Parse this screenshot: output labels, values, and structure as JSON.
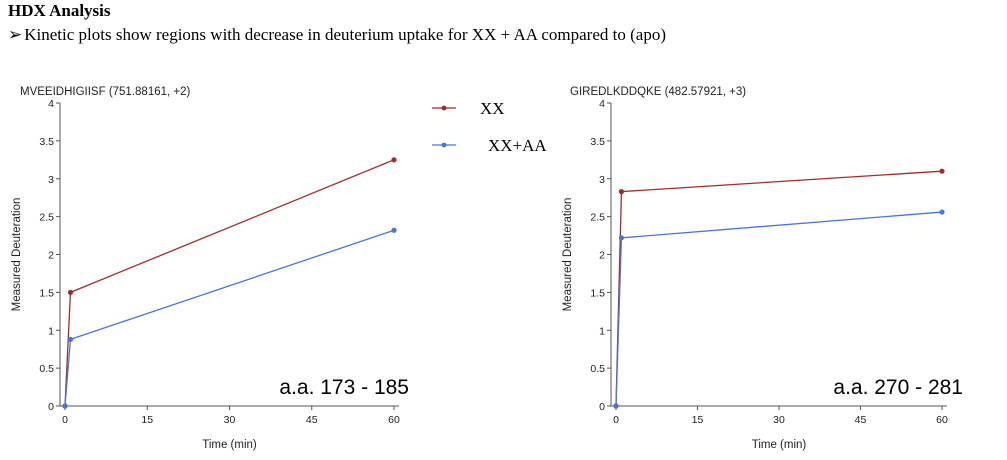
{
  "slide": {
    "heading": "HDX Analysis",
    "bullet_arrow": "➢",
    "bullet_text": "Kinetic plots show regions with decrease in deuterium uptake for XX + AA  compared to (apo)"
  },
  "legend": {
    "items": [
      {
        "label": "XX",
        "color": "#a52a2a"
      },
      {
        "label": "XX+AA",
        "color": "#4a74d9"
      }
    ]
  },
  "chart_data": [
    {
      "type": "line",
      "title": "MVEEIDHIGIISF (751.88161, +2)",
      "xlabel": "Time (min)",
      "ylabel": "Measured Deuteration",
      "xlim": [
        0,
        60
      ],
      "ylim": [
        0,
        4
      ],
      "xticks": [
        0,
        15,
        30,
        45,
        60
      ],
      "yticks": [
        0,
        0.5,
        1,
        1.5,
        2,
        2.5,
        3,
        3.5,
        4
      ],
      "annotation": "a.a. 173 - 185",
      "series": [
        {
          "name": "XX",
          "color": "#a52a2a",
          "x": [
            0,
            1,
            60
          ],
          "y": [
            0,
            1.5,
            3.25
          ]
        },
        {
          "name": "XX+AA",
          "color": "#4a74d9",
          "x": [
            0,
            1,
            60
          ],
          "y": [
            0,
            0.88,
            2.32
          ]
        }
      ]
    },
    {
      "type": "line",
      "title": "GIREDLKDDQKE (482.57921, +3)",
      "xlabel": "Time (min)",
      "ylabel": "Measured Deuteration",
      "xlim": [
        0,
        60
      ],
      "ylim": [
        0,
        4
      ],
      "xticks": [
        0,
        15,
        30,
        45,
        60
      ],
      "yticks": [
        0,
        0.5,
        1,
        1.5,
        2,
        2.5,
        3,
        3.5,
        4
      ],
      "annotation": "a.a. 270 - 281",
      "series": [
        {
          "name": "XX",
          "color": "#a52a2a",
          "x": [
            0,
            1,
            60
          ],
          "y": [
            0,
            2.83,
            3.1
          ]
        },
        {
          "name": "XX+AA",
          "color": "#4a74d9",
          "x": [
            0,
            1,
            60
          ],
          "y": [
            0,
            2.22,
            2.56
          ]
        }
      ]
    }
  ]
}
